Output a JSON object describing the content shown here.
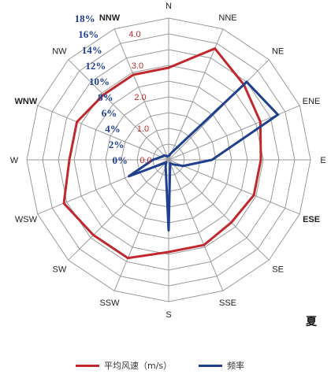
{
  "chart_data": {
    "type": "radar",
    "directions": [
      "N",
      "NNE",
      "NE",
      "ENE",
      "E",
      "ESE",
      "SE",
      "SSE",
      "S",
      "SSW",
      "SW",
      "WSW",
      "W",
      "WNW",
      "NW",
      "NNW"
    ],
    "bold_directions": [
      "NNW",
      "WNW",
      "ESE"
    ],
    "frequency_axis": {
      "ticks": [
        "0%",
        "2%",
        "4%",
        "6%",
        "8%",
        "10%",
        "12%",
        "14%",
        "16%",
        "18%"
      ],
      "max": 18
    },
    "speed_axis": {
      "ticks": [
        "0.0",
        "1.0",
        "2.0",
        "3.0",
        "4.0"
      ],
      "max": 4.0
    },
    "series": [
      {
        "name": "平均风速（m/s）",
        "color": "#c0282d",
        "axis": "speed",
        "values": [
          2.6,
          3.4,
          3.0,
          2.8,
          2.6,
          2.6,
          2.5,
          2.6,
          2.6,
          3.0,
          3.0,
          3.2,
          2.8,
          2.8,
          2.6,
          2.6
        ]
      },
      {
        "name": "频率",
        "color": "#1f3f8f",
        "axis": "frequency",
        "values": [
          0.5,
          1.0,
          14.0,
          15.0,
          5.5,
          2.0,
          0.8,
          0.5,
          9.0,
          1.0,
          0.5,
          5.5,
          2.0,
          1.0,
          0.8,
          0.5
        ]
      }
    ]
  },
  "season_label": "夏"
}
